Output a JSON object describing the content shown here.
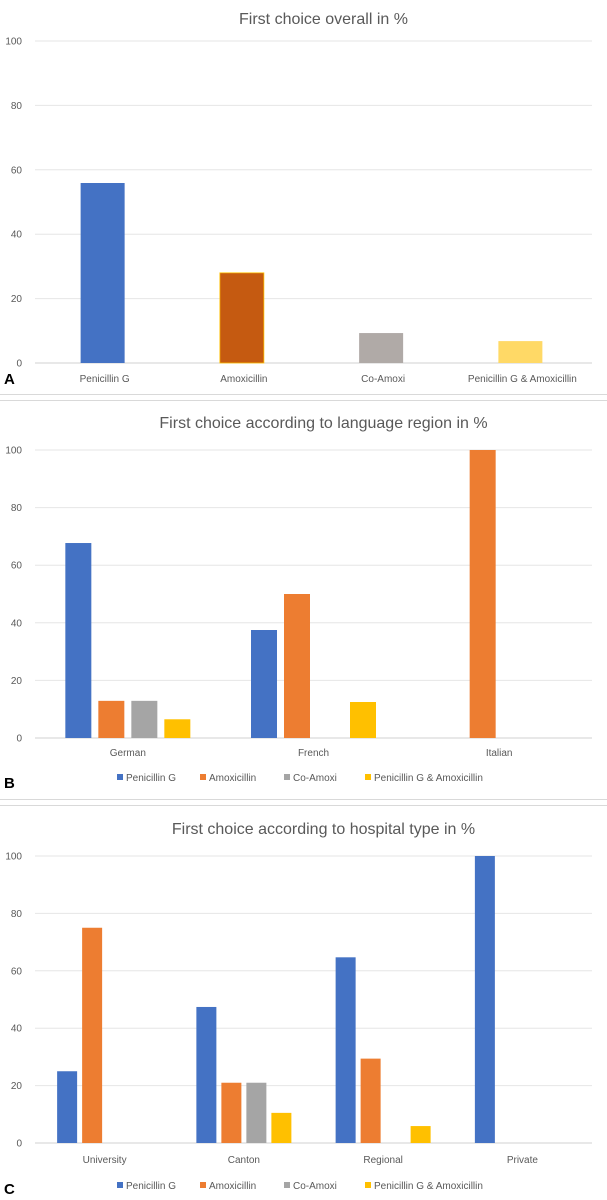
{
  "colors": {
    "penicillin_g": "#4472c4",
    "amoxicillin": "#ed7d31",
    "co_amoxi": "#a5a5a5",
    "pen_amox": "#ffc000",
    "a_amox": "#c55a11",
    "a_co": "#b0aaa7",
    "a_pa": "#ffd966"
  },
  "chart_data": [
    {
      "panel": "A",
      "type": "bar",
      "title": "First choice overall in %",
      "categories": [
        "Penicillin G",
        "Amoxicillin",
        "Co-Amoxi",
        "Penicillin G & Amoxicillin"
      ],
      "values": [
        55.9,
        28,
        9.3,
        6.8
      ],
      "yticks": [
        "0",
        "20",
        "40",
        "60",
        "80",
        "100"
      ],
      "ylim": [
        0,
        100
      ],
      "grid": true
    },
    {
      "panel": "B",
      "type": "bar",
      "title": "First choice according to language region in %",
      "categories": [
        "German",
        "French",
        "Italian"
      ],
      "series": [
        {
          "name": "Penicillin G",
          "values": [
            67.7,
            37.5,
            0
          ]
        },
        {
          "name": "Amoxicillin",
          "values": [
            12.9,
            50,
            100
          ]
        },
        {
          "name": "Co-Amoxi",
          "values": [
            12.9,
            0,
            0
          ]
        },
        {
          "name": "Penicillin G & Amoxicillin",
          "values": [
            6.5,
            12.5,
            0
          ]
        }
      ],
      "yticks": [
        "0",
        "20",
        "40",
        "60",
        "80",
        "100"
      ],
      "ylim": [
        0,
        100
      ],
      "legend": "bottom",
      "grid": true
    },
    {
      "panel": "C",
      "type": "bar",
      "title": "First choice according to hospital type in %",
      "categories": [
        "University",
        "Canton",
        "Regional",
        "Private"
      ],
      "series": [
        {
          "name": "Penicillin G",
          "values": [
            25,
            47.4,
            64.7,
            100
          ]
        },
        {
          "name": "Amoxicillin",
          "values": [
            75,
            21,
            29.4,
            0
          ]
        },
        {
          "name": "Co-Amoxi",
          "values": [
            0,
            21,
            0,
            0
          ]
        },
        {
          "name": "Penicillin G & Amoxicillin",
          "values": [
            0,
            10.5,
            5.9,
            0
          ]
        }
      ],
      "yticks": [
        "0",
        "20",
        "40",
        "60",
        "80",
        "100"
      ],
      "ylim": [
        0,
        100
      ],
      "legend": "bottom",
      "grid": true
    }
  ]
}
